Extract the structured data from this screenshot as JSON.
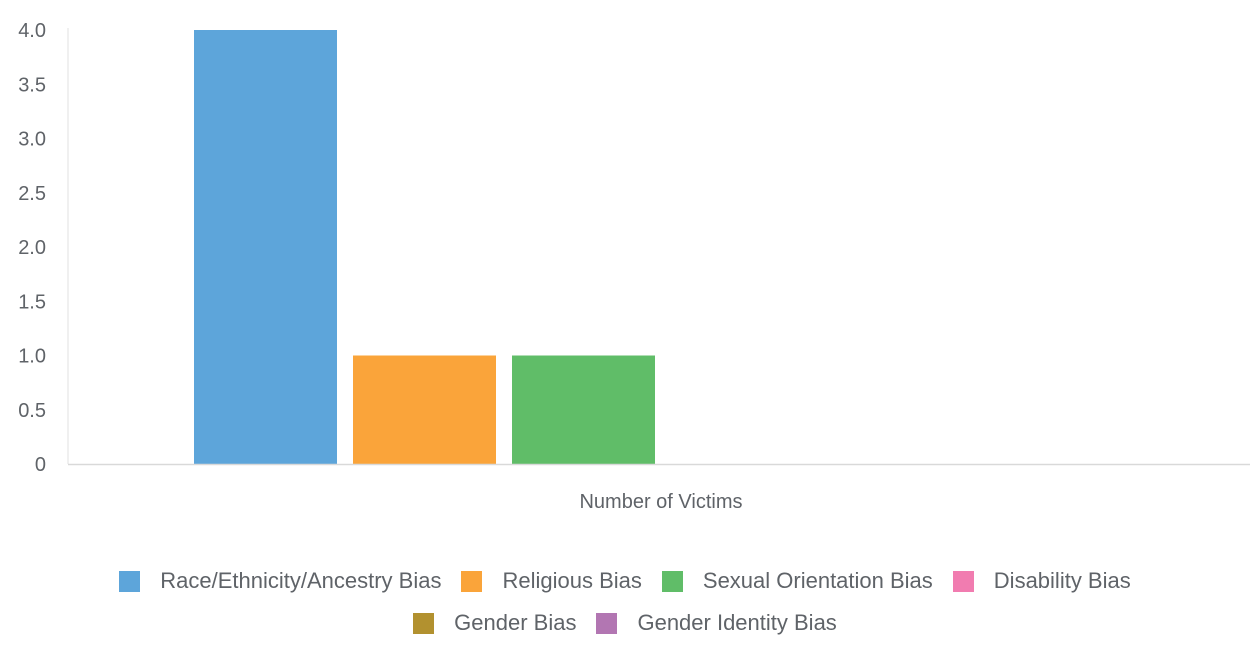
{
  "chart_data": {
    "type": "bar",
    "categories": [
      "Number of Victims"
    ],
    "xlabel": "Number of Victims",
    "ylim": [
      0,
      4
    ],
    "yticks": [
      "0",
      "0.5",
      "1.0",
      "1.5",
      "2.0",
      "2.5",
      "3.0",
      "3.5",
      "4.0"
    ],
    "grid": false,
    "legend_position": "bottom",
    "series": [
      {
        "name": "Race/Ethnicity/Ancestry Bias",
        "values": [
          4
        ],
        "color": "#5DA5DA"
      },
      {
        "name": "Religious Bias",
        "values": [
          1
        ],
        "color": "#FAA43A"
      },
      {
        "name": "Sexual Orientation Bias",
        "values": [
          1
        ],
        "color": "#60BD68"
      },
      {
        "name": "Disability Bias",
        "values": [
          0
        ],
        "color": "#F17CB0"
      },
      {
        "name": "Gender Bias",
        "values": [
          0
        ],
        "color": "#B2912F"
      },
      {
        "name": "Gender Identity Bias",
        "values": [
          0
        ],
        "color": "#B276B2"
      }
    ]
  }
}
